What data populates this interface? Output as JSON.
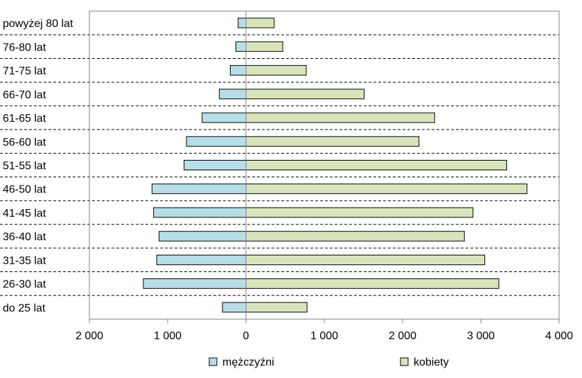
{
  "chart_data": {
    "type": "bar",
    "orientation": "horizontal",
    "layout": "population-pyramid",
    "categories": [
      "powyżej 80 lat",
      "76-80 lat",
      "71-75 lat",
      "66-70 lat",
      "61-65 lat",
      "56-60 lat",
      "51-55 lat",
      "46-50 lat",
      "41-45 lat",
      "36-40 lat",
      "31-35 lat",
      "26-30 lat",
      "do 25 lat"
    ],
    "series": [
      {
        "name": "mężczyźni",
        "color": "#b7dde8",
        "direction": "left",
        "values": [
          100,
          130,
          200,
          340,
          560,
          760,
          790,
          1200,
          1180,
          1110,
          1140,
          1310,
          300
        ]
      },
      {
        "name": "kobiety",
        "color": "#d8e4bc",
        "direction": "right",
        "values": [
          360,
          470,
          770,
          1510,
          2410,
          2210,
          3330,
          3590,
          2900,
          2790,
          3050,
          3230,
          780
        ]
      }
    ],
    "xlim": [
      -2000,
      4000
    ],
    "xticks": [
      -2000,
      -1000,
      0,
      1000,
      2000,
      3000,
      4000
    ],
    "xtick_labels": [
      "2 000",
      "1 000",
      "0",
      "1 000",
      "2 000",
      "3 000",
      "4 000"
    ],
    "grid": "horizontal dashed separators",
    "legend_position": "bottom"
  }
}
